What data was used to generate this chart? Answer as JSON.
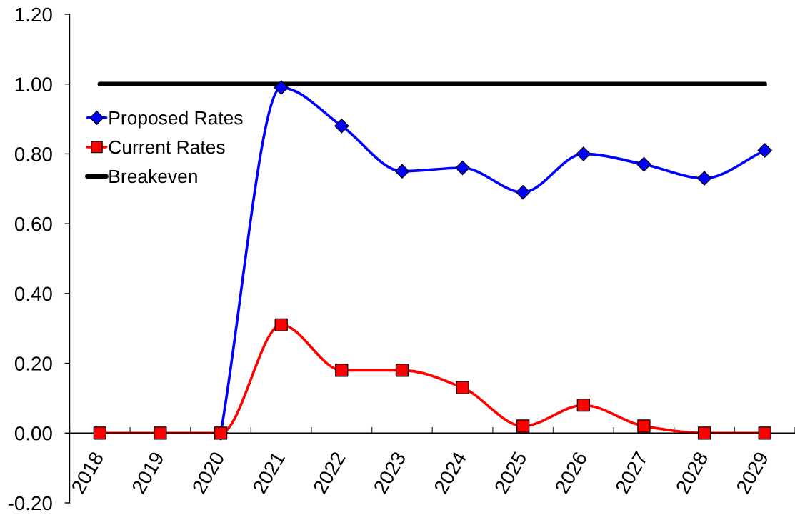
{
  "chart_data": {
    "type": "line",
    "categories": [
      "2018",
      "2019",
      "2020",
      "2021",
      "2022",
      "2023",
      "2024",
      "2025",
      "2026",
      "2027",
      "2028",
      "2029"
    ],
    "series": [
      {
        "name": "Proposed Rates",
        "color": "#0000ff",
        "marker": "diamond",
        "values": [
          null,
          null,
          0,
          0.99,
          0.88,
          0.75,
          0.76,
          0.69,
          0.8,
          0.77,
          0.73,
          0.81
        ]
      },
      {
        "name": "Current Rates",
        "color": "#ff0000",
        "marker": "square",
        "values": [
          0,
          0,
          0,
          0.31,
          0.18,
          0.18,
          0.13,
          0.02,
          0.08,
          0.02,
          0,
          0
        ]
      },
      {
        "name": "Breakeven",
        "color": "#000000",
        "marker": "none",
        "values": [
          1,
          1,
          1,
          1,
          1,
          1,
          1,
          1,
          1,
          1,
          1,
          1
        ]
      }
    ],
    "ylim": [
      -0.2,
      1.2
    ],
    "yticks": [
      {
        "value": -0.2,
        "label": "-0.20"
      },
      {
        "value": 0,
        "label": "0.00"
      },
      {
        "value": 0.2,
        "label": "0.20"
      },
      {
        "value": 0.4,
        "label": "0.40"
      },
      {
        "value": 0.6,
        "label": "0.60"
      },
      {
        "value": 0.8,
        "label": "0.80"
      },
      {
        "value": 1.0,
        "label": "1.00"
      },
      {
        "value": 1.2,
        "label": "1.20"
      }
    ],
    "legend": "top left"
  }
}
